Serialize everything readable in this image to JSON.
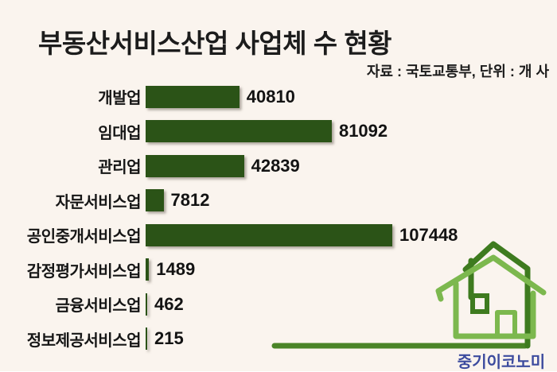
{
  "chart_data": {
    "type": "bar",
    "orientation": "horizontal",
    "title": "부동산서비스산업 사업체 수 현황",
    "source_note": "자료 : 국토교통부, 단위 : 개 사",
    "categories": [
      "개발업",
      "임대업",
      "관리업",
      "자문서비스업",
      "공인중개서비스업",
      "감정평가서비스업",
      "금융서비스업",
      "정보제공서비스업"
    ],
    "values": [
      40810,
      81092,
      42839,
      7812,
      107448,
      1489,
      462,
      215
    ],
    "value_labels": [
      "40810",
      "81092",
      "42839",
      "7812",
      "107448",
      "1489",
      "462",
      "215"
    ],
    "xlim": [
      0,
      107448
    ],
    "grid": false,
    "legend": "none",
    "bar_color": "#2b5317",
    "background_color": "#faf4ee",
    "text_color": "#1c1c1c"
  },
  "logo": {
    "text": "중기이코노미",
    "text_color": "#3c4b9e",
    "house_dark_color": "#3e7b1f",
    "house_light_color": "#7cb84e",
    "ground_line_color": "#4a8427"
  }
}
